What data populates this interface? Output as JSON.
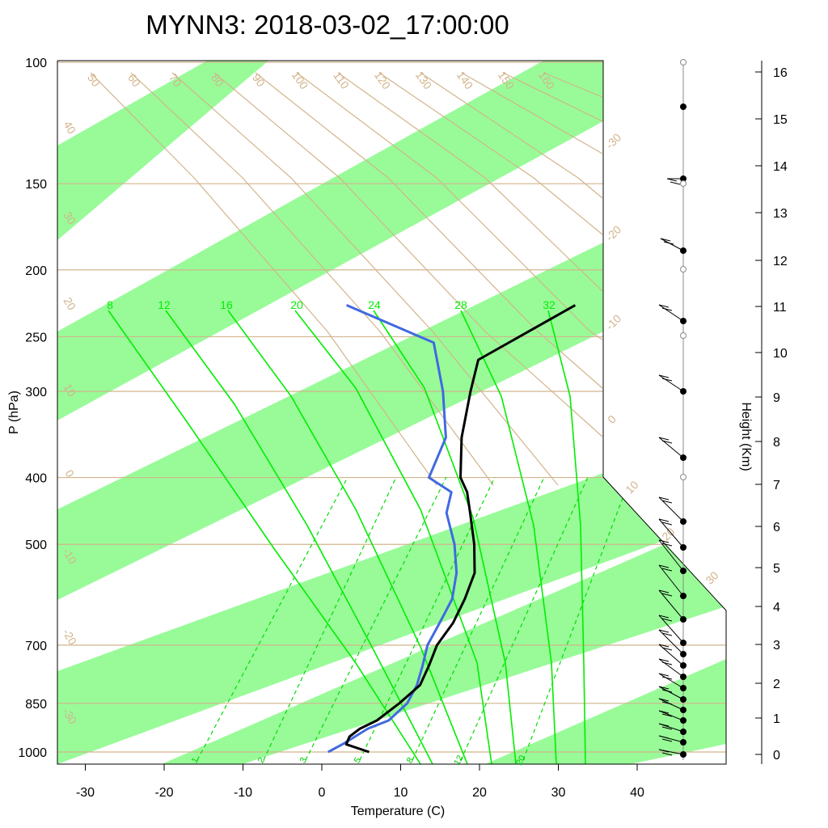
{
  "chart_data": {
    "type": "line",
    "title": "MYNN3: 2018-03-02_17:00:00",
    "xlabel": "Temperature (C)",
    "ylabel": "P (hPa)",
    "right_axis_label": "Height (Km)",
    "x_ticks": [
      -30,
      -20,
      -10,
      0,
      10,
      20,
      30,
      40
    ],
    "p_ticks": [
      100,
      150,
      200,
      250,
      300,
      400,
      500,
      700,
      850,
      1000
    ],
    "height_ticks": [
      0,
      1,
      2,
      3,
      4,
      5,
      6,
      7,
      8,
      9,
      10,
      11,
      12,
      13,
      14,
      15,
      16
    ],
    "height_tick_y": [
      933,
      888,
      845,
      797,
      750,
      702,
      651,
      599,
      546,
      491,
      436,
      379,
      322,
      263,
      205,
      147,
      89
    ],
    "mixing_ratio_labels": [
      "1",
      "2",
      "3",
      "5",
      "8",
      "12",
      "20"
    ],
    "mixing_ratio_label_x": [
      244,
      326,
      378,
      445,
      510,
      570,
      647
    ],
    "mixing_ratio_lines": [
      [
        244,
        940,
        430,
        590
      ],
      [
        326,
        940,
        490,
        590
      ],
      [
        378,
        940,
        552,
        590
      ],
      [
        445,
        940,
        612,
        590
      ],
      [
        510,
        940,
        673,
        590
      ],
      [
        570,
        940,
        727,
        590
      ],
      [
        647,
        940,
        780,
        590
      ]
    ],
    "moist_adiabat_labels": [
      "8",
      "12",
      "16",
      "20",
      "24",
      "28",
      "32"
    ],
    "moist_adiabat_label_x": [
      136,
      203,
      280,
      367,
      463,
      570,
      679
    ],
    "moist_adiabats": [
      [
        [
          134,
          384
        ],
        [
          230,
          520
        ],
        [
          340,
          680
        ],
        [
          440,
          820
        ],
        [
          520,
          945
        ]
      ],
      [
        [
          205,
          384
        ],
        [
          290,
          500
        ],
        [
          380,
          650
        ],
        [
          460,
          800
        ],
        [
          535,
          945
        ]
      ],
      [
        [
          282,
          384
        ],
        [
          360,
          490
        ],
        [
          440,
          630
        ],
        [
          520,
          800
        ],
        [
          578,
          945
        ]
      ],
      [
        [
          365,
          384
        ],
        [
          440,
          480
        ],
        [
          520,
          630
        ],
        [
          590,
          820
        ],
        [
          608,
          945
        ]
      ],
      [
        [
          462,
          384
        ],
        [
          525,
          480
        ],
        [
          585,
          640
        ],
        [
          625,
          820
        ],
        [
          638,
          945
        ]
      ],
      [
        [
          570,
          384
        ],
        [
          620,
          490
        ],
        [
          660,
          650
        ],
        [
          682,
          820
        ],
        [
          688,
          945
        ]
      ],
      [
        [
          678,
          384
        ],
        [
          705,
          490
        ],
        [
          718,
          650
        ],
        [
          722,
          820
        ],
        [
          724,
          945
        ]
      ]
    ],
    "dry_adiabat_labels": [
      "50",
      "60",
      "70",
      "80",
      "90",
      "100",
      "110",
      "120",
      "130",
      "140",
      "150",
      "160"
    ],
    "dry_adiabat_label_x": [
      112,
      162,
      213,
      265,
      316,
      367,
      418,
      469,
      520,
      571,
      622,
      672
    ],
    "dry_adiabats": [
      [
        [
          112,
          90
        ],
        [
          240,
          220
        ],
        [
          405,
          410
        ],
        [
          540,
          600
        ]
      ],
      [
        [
          162,
          90
        ],
        [
          300,
          220
        ],
        [
          470,
          410
        ],
        [
          610,
          600
        ]
      ],
      [
        [
          213,
          90
        ],
        [
          360,
          220
        ],
        [
          535,
          410
        ],
        [
          690,
          600
        ]
      ],
      [
        [
          265,
          90
        ],
        [
          420,
          220
        ],
        [
          600,
          410
        ],
        [
          745,
          540
        ]
      ],
      [
        [
          316,
          90
        ],
        [
          480,
          220
        ],
        [
          665,
          410
        ],
        [
          745,
          480
        ]
      ],
      [
        [
          367,
          90
        ],
        [
          540,
          220
        ],
        [
          730,
          410
        ],
        [
          745,
          420
        ]
      ],
      [
        [
          418,
          90
        ],
        [
          600,
          220
        ],
        [
          745,
          360
        ]
      ],
      [
        [
          469,
          90
        ],
        [
          660,
          220
        ],
        [
          745,
          290
        ]
      ],
      [
        [
          520,
          90
        ],
        [
          715,
          220
        ],
        [
          745,
          245
        ]
      ],
      [
        [
          571,
          90
        ],
        [
          745,
          190
        ]
      ],
      [
        [
          622,
          90
        ],
        [
          745,
          150
        ]
      ],
      [
        [
          672,
          90
        ],
        [
          745,
          120
        ]
      ]
    ],
    "temp_label_left": [
      "40",
      "30",
      "20",
      "10",
      "0",
      "-10",
      "-20",
      "-30"
    ],
    "temp_label_left_y": [
      160,
      272,
      378,
      485,
      588,
      690,
      790,
      888
    ],
    "temp_label_right": [
      "-30",
      "-20",
      "-10",
      "0",
      "10",
      "20",
      "30"
    ],
    "temp_label_right_y": [
      178,
      292,
      402,
      522,
      606,
      664,
      718
    ],
    "temperature": {
      "name": "",
      "x": [
        6.0,
        2.5,
        2.3,
        3.0,
        4.5,
        6.0,
        7.2,
        6.8,
        6.2,
        6.5,
        6.1,
        5.3,
        3.0,
        0.0,
        -2.0,
        -4.0,
        -7.0,
        -9.5,
        -11.0,
        -3.0
      ],
      "y": [
        1000,
        975,
        950,
        925,
        900,
        850,
        800,
        750,
        700,
        650,
        600,
        550,
        500,
        450,
        420,
        400,
        350,
        300,
        270,
        225
      ]
    },
    "dewpoint": {
      "name": "",
      "x": [
        0.8,
        2.0,
        3.0,
        4.0,
        6.0,
        7.0,
        6.8,
        6.0,
        5.0,
        4.8,
        4.5,
        3.0,
        0.5,
        -3.0,
        -4.0,
        -8.0,
        -9.0,
        -13.0,
        -18.0,
        -32.0
      ],
      "y": [
        1000,
        975,
        950,
        925,
        900,
        850,
        800,
        750,
        700,
        650,
        600,
        550,
        500,
        450,
        420,
        400,
        350,
        300,
        255,
        225
      ]
    },
    "wind_barb_levels_hpa": [
      1000,
      975,
      950,
      925,
      900,
      875,
      850,
      825,
      800,
      775,
      750,
      725,
      700,
      650,
      600,
      550,
      500,
      450,
      400,
      350,
      300,
      250,
      200,
      150,
      100
    ],
    "height_marker_y": [
      933,
      918,
      905,
      891,
      878,
      865,
      851,
      837,
      823,
      809,
      795,
      766,
      737,
      706,
      677,
      645,
      566,
      484,
      397,
      310,
      221,
      132
    ],
    "wind_barbs": [
      [
        933,
        -30,
        -6
      ],
      [
        918,
        -30,
        -8
      ],
      [
        905,
        -30,
        -10
      ],
      [
        891,
        -30,
        -12
      ],
      [
        878,
        -30,
        -14
      ],
      [
        865,
        -30,
        -16
      ],
      [
        851,
        -30,
        -18
      ],
      [
        837,
        -30,
        -22
      ],
      [
        823,
        -30,
        -26
      ],
      [
        809,
        -30,
        -30
      ],
      [
        795,
        -30,
        -34
      ],
      [
        766,
        -30,
        -36
      ],
      [
        737,
        -30,
        -38
      ],
      [
        706,
        -30,
        -38
      ],
      [
        677,
        -30,
        -35
      ],
      [
        645,
        -30,
        -30
      ],
      [
        566,
        -30,
        -25
      ],
      [
        484,
        -30,
        -20
      ],
      [
        397,
        -30,
        -20
      ],
      [
        310,
        -28,
        -15
      ],
      [
        221,
        -20,
        0
      ]
    ]
  }
}
